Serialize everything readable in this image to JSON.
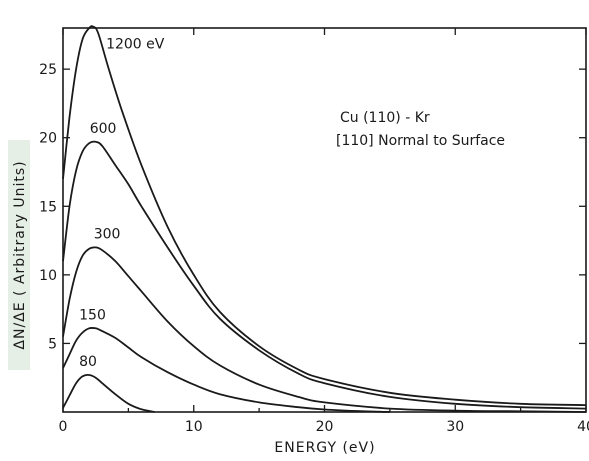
{
  "chart_data": {
    "type": "line",
    "xlabel": "ENERGY (eV)",
    "ylabel": "ΔN/ΔE ( Arbitrary Units)",
    "xlim": [
      0,
      40
    ],
    "ylim": [
      0,
      28
    ],
    "x_ticks": [
      0,
      10,
      20,
      30,
      40
    ],
    "x_tick_labels": [
      "0",
      "10",
      "20",
      "30",
      "40"
    ],
    "y_ticks": [
      5,
      10,
      15,
      20,
      25
    ],
    "y_tick_labels": [
      "5",
      "10",
      "15",
      "20",
      "25"
    ],
    "grid": false,
    "annotation": [
      "Cu (110) - Kr",
      "[110] Normal to Surface"
    ],
    "series": [
      {
        "name": "1200 eV",
        "label": "1200 eV",
        "x": [
          0,
          0.5,
          1,
          1.5,
          2,
          2.3,
          2.7,
          3.5,
          4.5,
          6,
          8,
          10,
          12,
          15,
          18,
          20,
          25,
          30,
          35,
          40
        ],
        "y": [
          17,
          21.5,
          25,
          27.2,
          28,
          28.1,
          27.6,
          25,
          22,
          18,
          13.5,
          10,
          7.3,
          4.8,
          3.1,
          2.4,
          1.4,
          0.9,
          0.6,
          0.5
        ]
      },
      {
        "name": "600",
        "label": "600",
        "x": [
          0,
          0.5,
          1,
          1.5,
          2,
          2.5,
          3,
          4,
          5,
          6,
          8,
          10,
          12,
          15,
          18,
          20,
          25,
          30,
          35,
          40
        ],
        "y": [
          11,
          15,
          17.6,
          19,
          19.6,
          19.7,
          19.4,
          18,
          16.6,
          15,
          12,
          9.2,
          6.8,
          4.5,
          2.8,
          2.1,
          1.1,
          0.6,
          0.35,
          0.25
        ]
      },
      {
        "name": "300",
        "label": "300",
        "x": [
          0,
          0.5,
          1,
          1.5,
          2,
          2.5,
          3,
          4,
          5,
          6,
          8,
          10,
          12,
          15,
          18,
          20,
          25,
          30,
          35,
          40
        ],
        "y": [
          5.5,
          8.2,
          10.2,
          11.4,
          11.9,
          12,
          11.8,
          11,
          9.9,
          8.8,
          6.6,
          4.8,
          3.4,
          2,
          1.1,
          0.7,
          0.25,
          0.1,
          0.05,
          0
        ]
      },
      {
        "name": "150",
        "label": "150",
        "x": [
          0,
          0.5,
          1,
          1.5,
          2,
          2.5,
          3,
          4,
          5,
          6,
          8,
          10,
          12,
          15,
          18,
          20,
          23,
          25
        ],
        "y": [
          3.2,
          4.2,
          5.2,
          5.8,
          6.1,
          6.1,
          5.9,
          5.4,
          4.7,
          4,
          2.9,
          2,
          1.3,
          0.7,
          0.35,
          0.18,
          0.05,
          0
        ]
      },
      {
        "name": "80",
        "label": "80",
        "x": [
          0,
          0.5,
          1,
          1.5,
          2,
          2.5,
          3,
          4,
          5,
          6,
          7
        ],
        "y": [
          0.3,
          1.2,
          2.1,
          2.6,
          2.7,
          2.5,
          2.1,
          1.3,
          0.6,
          0.2,
          0
        ]
      }
    ]
  }
}
